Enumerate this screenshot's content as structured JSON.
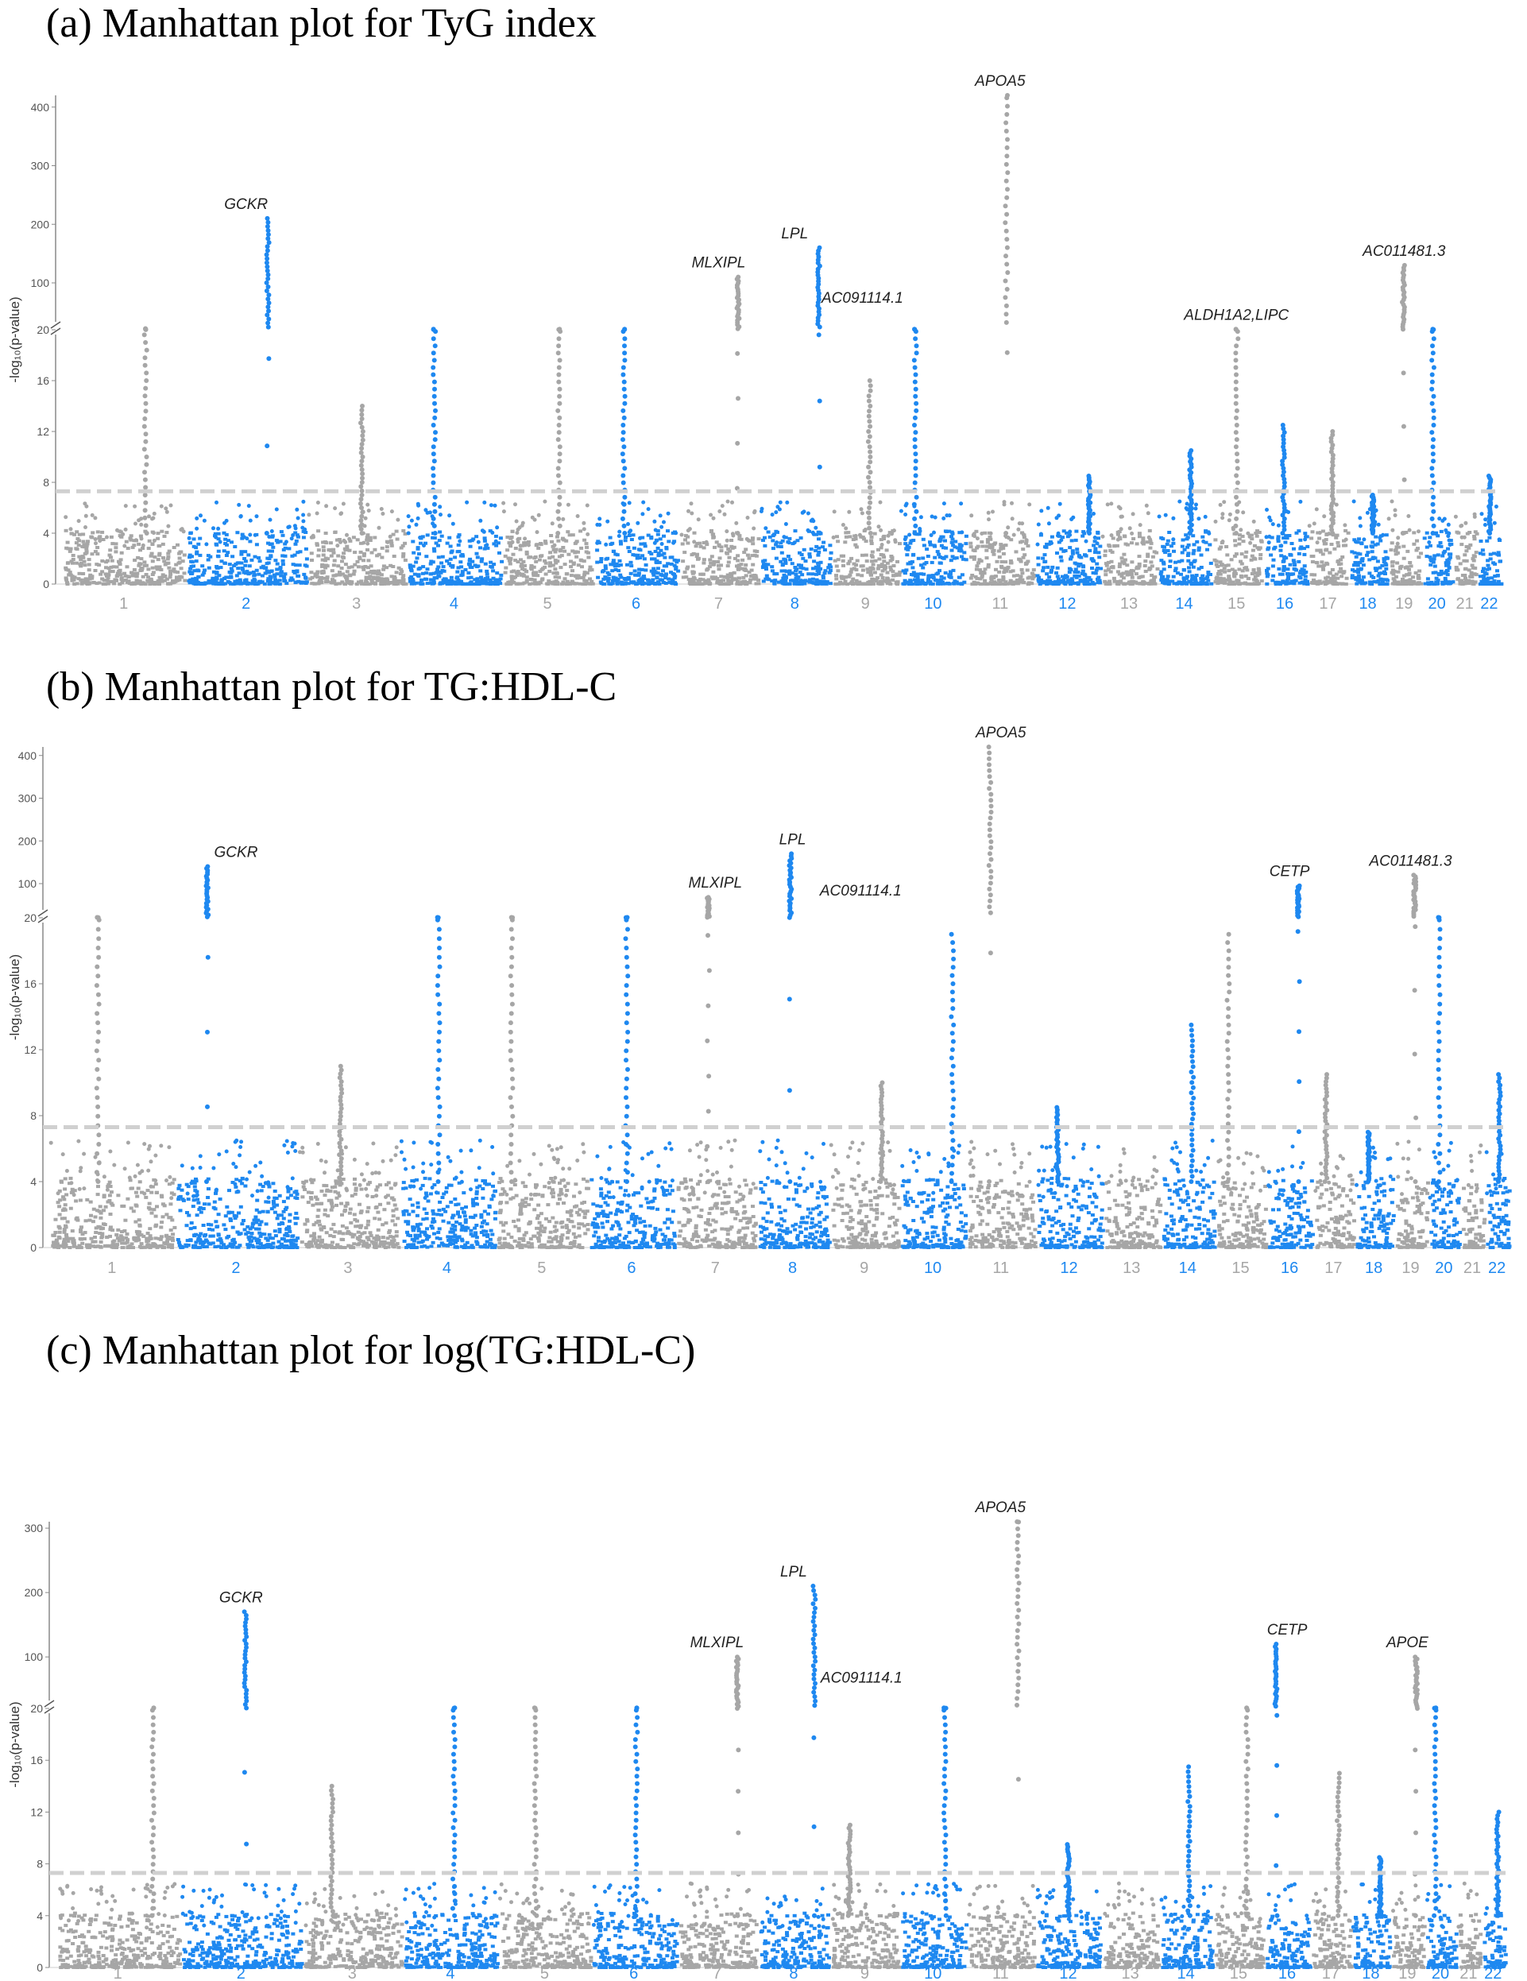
{
  "colors": {
    "grey": "#a6a6a6",
    "blue": "#1e88f0",
    "threshold": "#d0d0d0",
    "axis": "#888888"
  },
  "chart_data": [
    {
      "type": "scatter",
      "subtype": "manhattan",
      "title": "(a) Manhattan plot for TyG index",
      "ylabel": "-log₁₀(p-value)",
      "y_ticks_lower": [
        0,
        4,
        8,
        12,
        16,
        20
      ],
      "y_ticks_upper": [
        100,
        200,
        300,
        400
      ],
      "axis_break": 20,
      "threshold": 7.3,
      "chromosomes": [
        "1",
        "2",
        "3",
        "4",
        "5",
        "6",
        "7",
        "8",
        "9",
        "10",
        "11",
        "12",
        "13",
        "14",
        "15",
        "16",
        "17",
        "18",
        "19",
        "20",
        "21",
        "22"
      ],
      "chromosome_peaks": [
        22,
        210,
        14,
        21,
        21,
        21,
        110,
        160,
        16,
        21,
        430,
        8.5,
        6,
        10.5,
        21,
        12.5,
        12,
        7,
        130,
        21,
        5,
        8.5
      ],
      "gene_annotations": [
        {
          "gene": "GCKR",
          "chrom": "2",
          "value": 210
        },
        {
          "gene": "MLXIPL",
          "chrom": "7",
          "value": 110
        },
        {
          "gene": "LPL",
          "chrom": "8",
          "value": 160
        },
        {
          "gene": "AC091114.1",
          "chrom": "8",
          "value": 50
        },
        {
          "gene": "APOA5",
          "chrom": "11",
          "value": 430
        },
        {
          "gene": "ALDH1A2,LIPC",
          "chrom": "15",
          "value": 21
        },
        {
          "gene": "AC011481.3",
          "chrom": "19",
          "value": 130
        }
      ]
    },
    {
      "type": "scatter",
      "subtype": "manhattan",
      "title": "(b) Manhattan plot for TG:HDL-C",
      "ylabel": "-log₁₀(p-value)",
      "y_ticks_lower": [
        0,
        4,
        8,
        12,
        16,
        20
      ],
      "y_ticks_upper": [
        100,
        200,
        300,
        400
      ],
      "axis_break": 20,
      "threshold": 7.3,
      "chromosomes": [
        "1",
        "2",
        "3",
        "4",
        "5",
        "6",
        "7",
        "8",
        "9",
        "10",
        "11",
        "12",
        "13",
        "14",
        "15",
        "16",
        "17",
        "18",
        "19",
        "20",
        "21",
        "22"
      ],
      "chromosome_peaks": [
        21,
        140,
        11,
        21,
        21,
        21,
        68,
        170,
        10,
        19,
        420,
        8.5,
        5.5,
        13.5,
        19,
        95,
        10.5,
        7,
        120,
        21,
        4.5,
        10.5
      ],
      "gene_annotations": [
        {
          "gene": "GCKR",
          "chrom": "2",
          "value": 140
        },
        {
          "gene": "MLXIPL",
          "chrom": "7",
          "value": 68
        },
        {
          "gene": "LPL",
          "chrom": "8",
          "value": 170
        },
        {
          "gene": "AC091114.1",
          "chrom": "8",
          "value": 50
        },
        {
          "gene": "APOA5",
          "chrom": "11",
          "value": 420
        },
        {
          "gene": "CETP",
          "chrom": "16",
          "value": 95
        },
        {
          "gene": "AC011481.3",
          "chrom": "19",
          "value": 120
        }
      ]
    },
    {
      "type": "scatter",
      "subtype": "manhattan",
      "title": "(c) Manhattan plot for log(TG:HDL-C)",
      "ylabel": "-log₁₀(p-value)",
      "y_ticks_lower": [
        0,
        4,
        8,
        12,
        16,
        20
      ],
      "y_ticks_upper": [
        100,
        200,
        300
      ],
      "axis_break": 20,
      "threshold": 7.3,
      "chromosomes": [
        "1",
        "2",
        "3",
        "4",
        "5",
        "6",
        "7",
        "8",
        "9",
        "10",
        "11",
        "12",
        "13",
        "14",
        "15",
        "16",
        "17",
        "18",
        "19",
        "20",
        "21",
        "22"
      ],
      "chromosome_peaks": [
        21,
        170,
        14,
        21,
        21,
        21,
        100,
        210,
        11,
        21,
        320,
        9.5,
        6,
        15.5,
        21,
        120,
        15,
        8.5,
        100,
        21,
        5,
        12
      ],
      "gene_annotations": [
        {
          "gene": "GCKR",
          "chrom": "2",
          "value": 170
        },
        {
          "gene": "MLXIPL",
          "chrom": "7",
          "value": 100
        },
        {
          "gene": "LPL",
          "chrom": "8",
          "value": 210
        },
        {
          "gene": "AC091114.1",
          "chrom": "8",
          "value": 45
        },
        {
          "gene": "APOA5",
          "chrom": "11",
          "value": 320
        },
        {
          "gene": "CETP",
          "chrom": "16",
          "value": 120
        },
        {
          "gene": "APOE",
          "chrom": "19",
          "value": 100
        }
      ]
    }
  ]
}
